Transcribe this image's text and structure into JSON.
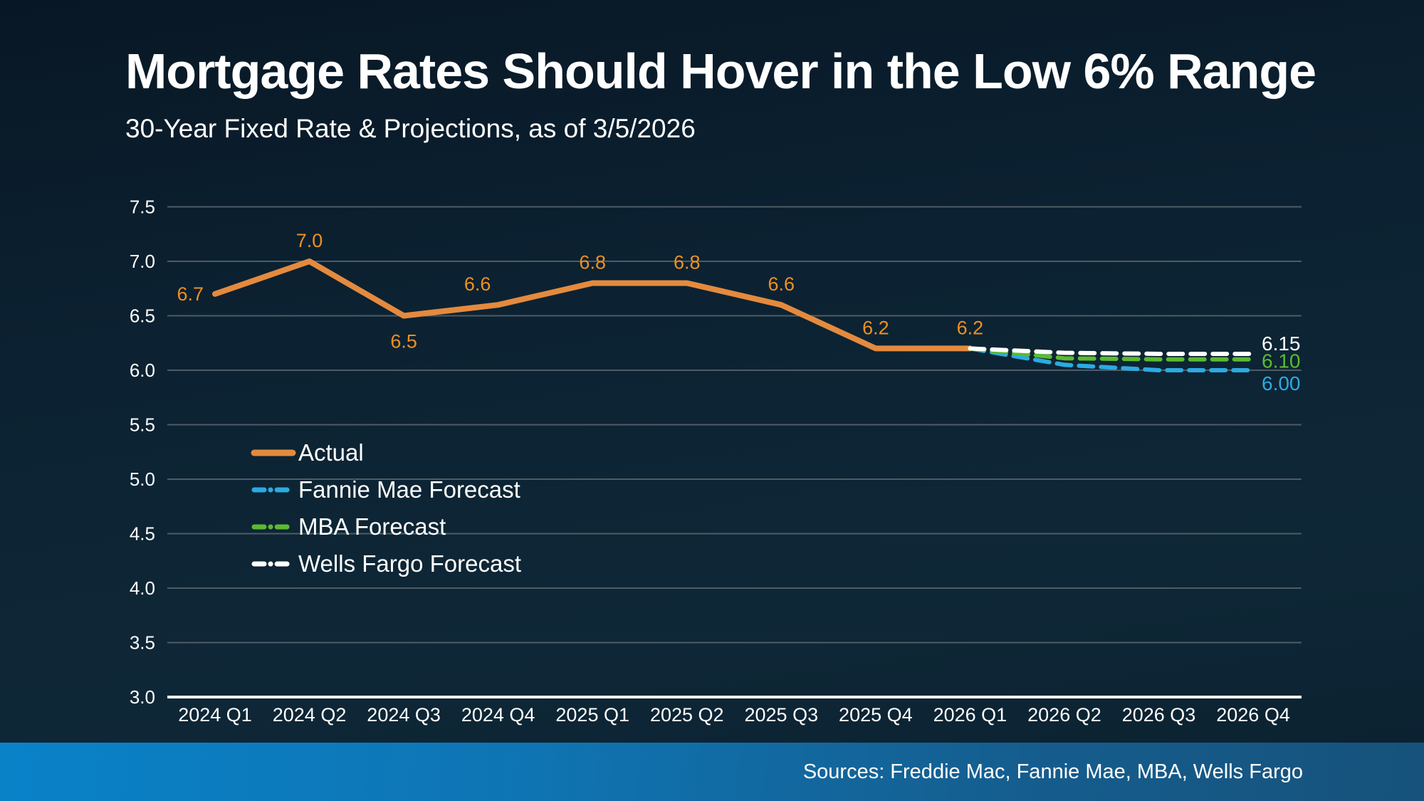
{
  "slide": {
    "title": "Mortgage Rates Should Hover in the Low 6% Range",
    "subtitle": "30-Year Fixed Rate & Projections, as of 3/5/2026",
    "source_note": "Sources: Freddie Mac, Fannie Mae, MBA, Wells Fargo"
  },
  "colors": {
    "background": "#0c2232",
    "text": "#ffffff",
    "gridline": "#4e5b66",
    "axis_line": "#ffffff",
    "actual_line": "#e48a3e",
    "actual_label": "#ee9021",
    "fannie_mae": "#2baae2",
    "mba": "#5abb2f",
    "wells_fargo": "#ffffff",
    "footer_left": "#0982c9",
    "footer_right": "#16527b"
  },
  "chart_data": {
    "type": "line",
    "title": "Mortgage Rates Should Hover in the Low 6% Range",
    "subtitle": "30-Year Fixed Rate & Projections, as of 3/5/2026",
    "categories": [
      "2024 Q1",
      "2024 Q2",
      "2024 Q3",
      "2024 Q4",
      "2025 Q1",
      "2025 Q2",
      "2025 Q3",
      "2025 Q4",
      "2026 Q1",
      "2026 Q2",
      "2026 Q3",
      "2026 Q4"
    ],
    "ylim": [
      3.0,
      7.5
    ],
    "ytick_step": 0.5,
    "ytick_labels": [
      "3.0",
      "3.5",
      "4.0",
      "4.5",
      "5.0",
      "5.5",
      "6.0",
      "6.5",
      "7.0",
      "7.5"
    ],
    "grid": true,
    "legend_position": "inside-left",
    "series": [
      {
        "name": "Actual",
        "color": "#e48a3e",
        "style": "solid",
        "values": [
          6.7,
          7.0,
          6.5,
          6.6,
          6.8,
          6.8,
          6.6,
          6.2,
          6.2,
          null,
          null,
          null
        ],
        "point_labels": [
          "6.7",
          "7.0",
          "6.5",
          "6.6",
          "6.8",
          "6.8",
          "6.6",
          "6.2",
          "6.2"
        ],
        "label_placements": [
          "left",
          "above",
          "below",
          "above-left",
          "above",
          "above",
          "above",
          "above",
          "above"
        ]
      },
      {
        "name": "Fannie Mae Forecast",
        "color": "#2baae2",
        "style": "dashed",
        "values": [
          null,
          null,
          null,
          null,
          null,
          null,
          null,
          null,
          6.2,
          6.05,
          6.0,
          6.0
        ],
        "end_label": "6.00"
      },
      {
        "name": "MBA Forecast",
        "color": "#5abb2f",
        "style": "dashed",
        "values": [
          null,
          null,
          null,
          null,
          null,
          null,
          null,
          null,
          6.2,
          6.11,
          6.1,
          6.1
        ],
        "end_label": "6.10"
      },
      {
        "name": "Wells Fargo Forecast",
        "color": "#ffffff",
        "style": "dashed",
        "values": [
          null,
          null,
          null,
          null,
          null,
          null,
          null,
          null,
          6.2,
          6.16,
          6.15,
          6.15
        ],
        "end_label": "6.15"
      }
    ],
    "legend": [
      "Actual",
      "Fannie Mae Forecast",
      "MBA Forecast",
      "Wells Fargo Forecast"
    ]
  }
}
